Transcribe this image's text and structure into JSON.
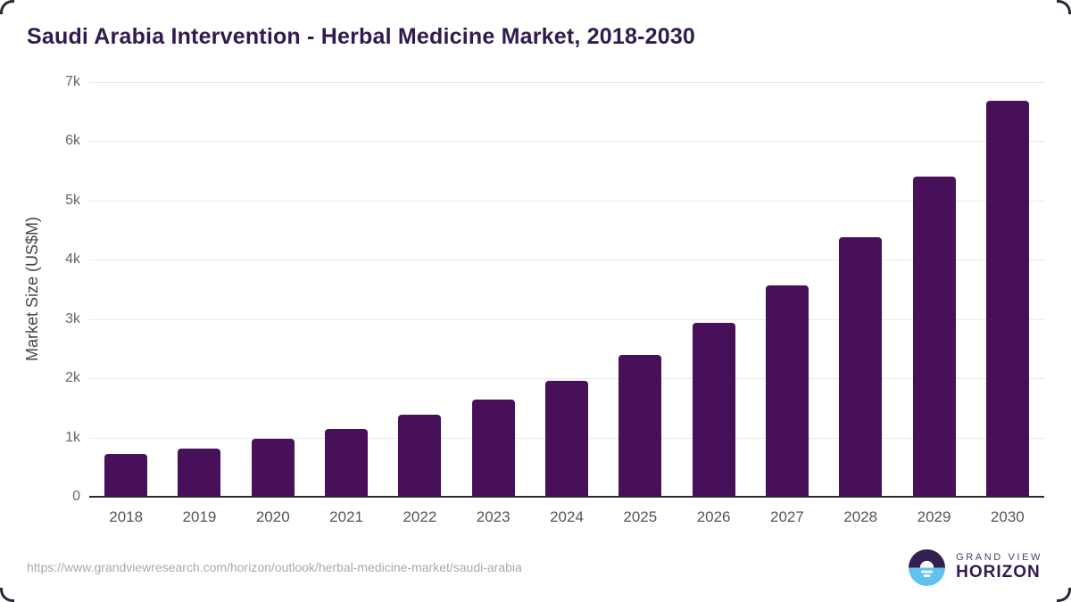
{
  "title": "Saudi Arabia Intervention - Herbal Medicine Market, 2018-2030",
  "chart_data": {
    "type": "bar",
    "categories": [
      "2018",
      "2019",
      "2020",
      "2021",
      "2022",
      "2023",
      "2024",
      "2025",
      "2026",
      "2027",
      "2028",
      "2029",
      "2030"
    ],
    "values": [
      730,
      810,
      980,
      1150,
      1390,
      1640,
      1950,
      2400,
      2930,
      3570,
      4380,
      5400,
      6690
    ],
    "title": "Saudi Arabia Intervention - Herbal Medicine Market, 2018-2030",
    "xlabel": "",
    "ylabel": "Market Size (US$M)",
    "ylim": [
      0,
      7000
    ],
    "ytick_values": [
      0,
      1000,
      2000,
      3000,
      4000,
      5000,
      6000,
      7000
    ],
    "ytick_labels": [
      "0",
      "1k",
      "2k",
      "3k",
      "4k",
      "5k",
      "6k",
      "7k"
    ],
    "grid": "horizontal",
    "legend": "none",
    "bar_color": "#481058"
  },
  "footer": {
    "source_url": "https://www.grandviewresearch.com/horizon/outlook/herbal-medicine-market/saudi-arabia",
    "logo": {
      "line1": "GRAND VIEW",
      "line2": "HORIZON"
    }
  },
  "colors": {
    "bar": "#481058",
    "title_text": "#311a4d",
    "axis_line": "#2b2b31",
    "gridline": "#e9e9eb",
    "tick_text": "#666666",
    "x_label_text": "#555555",
    "url_text": "#a9a9a9",
    "logo_purple": "#332051",
    "logo_blue": "#5fc3ee"
  }
}
